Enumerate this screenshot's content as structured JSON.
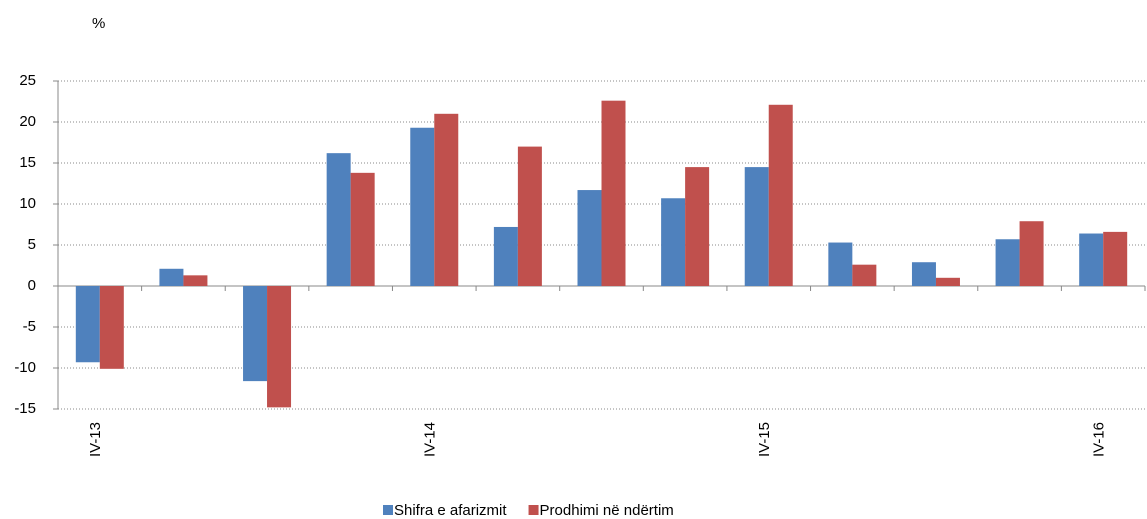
{
  "chart_data": {
    "type": "bar",
    "unit_label": "%",
    "categories": [
      "IV-13",
      null,
      null,
      null,
      "IV-14",
      null,
      null,
      null,
      "IV-15",
      null,
      null,
      null,
      "IV-16"
    ],
    "series": [
      {
        "name": "Shifra e afarizmit",
        "color": "#4f81bd",
        "values": [
          -9.3,
          2.1,
          -11.6,
          16.2,
          19.3,
          7.2,
          11.7,
          10.7,
          14.5,
          5.3,
          2.9,
          5.7,
          6.4
        ]
      },
      {
        "name": "Prodhimi në ndërtim",
        "color": "#c0504d",
        "values": [
          -10.1,
          1.3,
          -14.8,
          13.8,
          21.0,
          17.0,
          22.6,
          14.5,
          22.1,
          2.6,
          1.0,
          7.9,
          6.6
        ]
      }
    ],
    "ylim": [
      -15,
      25
    ],
    "yticks": [
      -15,
      -10,
      -5,
      0,
      5,
      10,
      15,
      20,
      25
    ],
    "grid": true,
    "legend": "bottom"
  }
}
